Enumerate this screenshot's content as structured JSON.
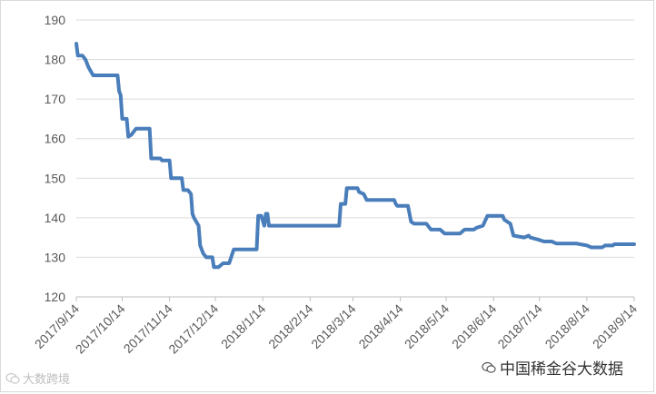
{
  "watermarks": {
    "left_text": "大数跨境",
    "left_icon": "wechat-icon",
    "right_text": "中国稀金谷大数据",
    "right_icon": "wechat-icon"
  },
  "colors": {
    "series": "#4a7ebb",
    "grid": "#d9d9d9",
    "text": "#595959"
  },
  "chart_data": {
    "type": "line",
    "title": "",
    "xlabel": "",
    "ylabel": "",
    "ylim": [
      120,
      190
    ],
    "yticks": [
      120,
      130,
      140,
      150,
      160,
      170,
      180,
      190
    ],
    "xlim": [
      "2017/9/14",
      "2018/9/14"
    ],
    "xtick_labels": [
      "2017/9/14",
      "2017/10/14",
      "2017/11/14",
      "2017/12/14",
      "2018/1/14",
      "2018/2/14",
      "2018/3/14",
      "2018/4/14",
      "2018/5/14",
      "2018/6/14",
      "2018/7/14",
      "2018/8/14",
      "2018/9/14"
    ],
    "grid": true,
    "legend": "none",
    "series": [
      {
        "name": "",
        "points": [
          [
            "2017/9/14",
            184
          ],
          [
            "2017/9/15",
            181
          ],
          [
            "2017/9/18",
            181
          ],
          [
            "2017/9/20",
            180
          ],
          [
            "2017/9/22",
            178
          ],
          [
            "2017/9/25",
            176
          ],
          [
            "2017/10/11",
            176
          ],
          [
            "2017/10/12",
            172
          ],
          [
            "2017/10/13",
            171
          ],
          [
            "2017/10/14",
            165
          ],
          [
            "2017/10/17",
            165
          ],
          [
            "2017/10/18",
            160.5
          ],
          [
            "2017/10/20",
            161
          ],
          [
            "2017/10/23",
            162.5
          ],
          [
            "2017/11/1",
            162.5
          ],
          [
            "2017/11/2",
            155
          ],
          [
            "2017/11/3",
            155
          ],
          [
            "2017/11/8",
            155
          ],
          [
            "2017/11/9",
            154.5
          ],
          [
            "2017/11/14",
            154.5
          ],
          [
            "2017/11/15",
            150
          ],
          [
            "2017/11/22",
            150
          ],
          [
            "2017/11/23",
            147
          ],
          [
            "2017/11/26",
            147
          ],
          [
            "2017/11/28",
            146
          ],
          [
            "2017/11/29",
            141
          ],
          [
            "2017/11/30",
            140
          ],
          [
            "2017/12/3",
            138
          ],
          [
            "2017/12/4",
            133
          ],
          [
            "2017/12/6",
            131
          ],
          [
            "2017/12/8",
            130
          ],
          [
            "2017/12/12",
            130
          ],
          [
            "2017/12/13",
            127.5
          ],
          [
            "2017/12/16",
            127.5
          ],
          [
            "2017/12/19",
            128.5
          ],
          [
            "2017/12/23",
            128.5
          ],
          [
            "2017/12/26",
            132
          ],
          [
            "2018/1/10",
            132
          ],
          [
            "2018/1/11",
            140.5
          ],
          [
            "2018/1/13",
            140.5
          ],
          [
            "2018/1/15",
            138
          ],
          [
            "2018/1/16",
            141
          ],
          [
            "2018/1/17",
            141
          ],
          [
            "2018/1/18",
            138
          ],
          [
            "2018/3/5",
            138
          ],
          [
            "2018/3/6",
            143.5
          ],
          [
            "2018/3/9",
            143.5
          ],
          [
            "2018/3/10",
            147.5
          ],
          [
            "2018/3/17",
            147.5
          ],
          [
            "2018/3/18",
            146.5
          ],
          [
            "2018/3/21",
            146
          ],
          [
            "2018/3/23",
            144.5
          ],
          [
            "2018/4/10",
            144.5
          ],
          [
            "2018/4/11",
            143.5
          ],
          [
            "2018/4/12",
            143
          ],
          [
            "2018/4/19",
            143
          ],
          [
            "2018/4/21",
            139
          ],
          [
            "2018/4/23",
            138.5
          ],
          [
            "2018/5/1",
            138.5
          ],
          [
            "2018/5/4",
            137
          ],
          [
            "2018/5/10",
            137
          ],
          [
            "2018/5/13",
            136
          ],
          [
            "2018/5/23",
            136
          ],
          [
            "2018/5/26",
            137
          ],
          [
            "2018/6/1",
            137
          ],
          [
            "2018/6/3",
            137.5
          ],
          [
            "2018/6/7",
            138
          ],
          [
            "2018/6/10",
            140.5
          ],
          [
            "2018/6/20",
            140.5
          ],
          [
            "2018/6/21",
            139.5
          ],
          [
            "2018/6/25",
            138.5
          ],
          [
            "2018/6/27",
            135.5
          ],
          [
            "2018/7/4",
            135
          ],
          [
            "2018/7/7",
            135.5
          ],
          [
            "2018/7/8",
            135
          ],
          [
            "2018/7/13",
            134.5
          ],
          [
            "2018/7/17",
            134
          ],
          [
            "2018/7/22",
            134
          ],
          [
            "2018/7/25",
            133.5
          ],
          [
            "2018/8/4",
            133.5
          ],
          [
            "2018/8/7",
            133.5
          ],
          [
            "2018/8/14",
            133
          ],
          [
            "2018/8/17",
            132.5
          ],
          [
            "2018/8/24",
            132.5
          ],
          [
            "2018/8/26",
            133
          ],
          [
            "2018/8/31",
            133
          ],
          [
            "2018/9/1",
            133.3
          ],
          [
            "2018/9/14",
            133.3
          ]
        ]
      }
    ]
  }
}
